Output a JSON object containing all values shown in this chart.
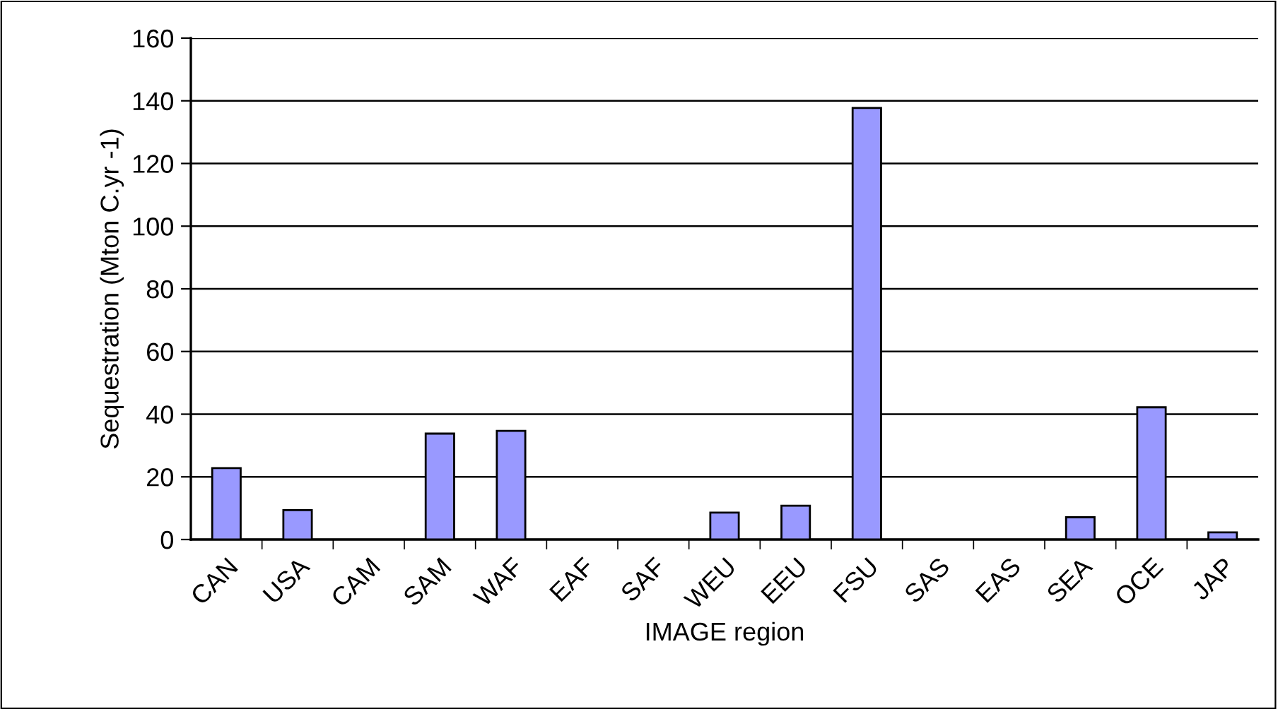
{
  "chart_data": {
    "type": "bar",
    "xlabel": "IMAGE region",
    "ylabel": "Sequestration (Mton C.yr -1)",
    "categories": [
      "CAN",
      "USA",
      "CAM",
      "SAM",
      "WAF",
      "EAF",
      "SAF",
      "WEU",
      "EEU",
      "FSU",
      "SAS",
      "EAS",
      "SEA",
      "OCE",
      "JAP"
    ],
    "values": [
      22.8,
      9.4,
      0,
      33.8,
      34.7,
      0,
      0,
      8.6,
      10.8,
      137.7,
      0,
      0,
      7.1,
      42.2,
      2.3
    ],
    "color": "#9999ff",
    "ylim": [
      0,
      160
    ],
    "yticks": [
      0,
      20,
      40,
      60,
      80,
      100,
      120,
      140,
      160
    ],
    "grid": "y"
  }
}
